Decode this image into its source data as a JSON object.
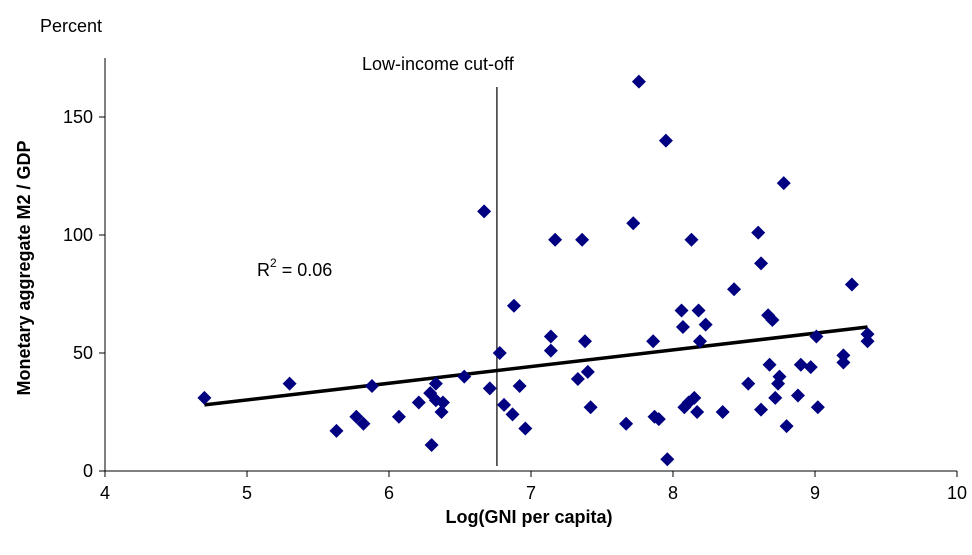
{
  "chart_data": {
    "type": "scatter",
    "xlabel": "Log(GNI per capita)",
    "ylabel": "Monetary aggregate M2 / GDP",
    "y_unit": "Percent",
    "xlim": [
      4,
      10
    ],
    "ylim": [
      0,
      175
    ],
    "x_ticks": [
      "4",
      "5",
      "6",
      "7",
      "8",
      "9",
      "10"
    ],
    "y_ticks": [
      "0",
      "50",
      "100",
      "150"
    ],
    "marker_color": "#000080",
    "grid": false,
    "legend": "none",
    "annotations": {
      "cutoff_label": "Low-income cut-off",
      "cutoff_x": 6.76,
      "r2_prefix": "R",
      "r2_sup": "2",
      "r2_value": " = 0.06"
    },
    "trendline": {
      "x": [
        4.7,
        9.37
      ],
      "y": [
        28,
        61
      ]
    },
    "points": [
      [
        4.7,
        31
      ],
      [
        5.3,
        37
      ],
      [
        5.63,
        17
      ],
      [
        5.77,
        23
      ],
      [
        5.82,
        20
      ],
      [
        5.88,
        36
      ],
      [
        6.07,
        23
      ],
      [
        6.21,
        29
      ],
      [
        6.29,
        33
      ],
      [
        6.3,
        11
      ],
      [
        6.33,
        37
      ],
      [
        6.33,
        30
      ],
      [
        6.37,
        25
      ],
      [
        6.38,
        29
      ],
      [
        6.53,
        40
      ],
      [
        6.67,
        110
      ],
      [
        6.71,
        35
      ],
      [
        6.78,
        50
      ],
      [
        6.81,
        28
      ],
      [
        6.87,
        24
      ],
      [
        6.88,
        70
      ],
      [
        6.92,
        36
      ],
      [
        6.96,
        18
      ],
      [
        7.14,
        57
      ],
      [
        7.14,
        51
      ],
      [
        7.17,
        98
      ],
      [
        7.33,
        39
      ],
      [
        7.36,
        98
      ],
      [
        7.38,
        55
      ],
      [
        7.4,
        42
      ],
      [
        7.42,
        27
      ],
      [
        7.67,
        20
      ],
      [
        7.72,
        105
      ],
      [
        7.76,
        165
      ],
      [
        7.86,
        55
      ],
      [
        7.87,
        23
      ],
      [
        7.9,
        22
      ],
      [
        7.95,
        140
      ],
      [
        7.96,
        5
      ],
      [
        8.06,
        68
      ],
      [
        8.07,
        61
      ],
      [
        8.08,
        27
      ],
      [
        8.11,
        29
      ],
      [
        8.13,
        98
      ],
      [
        8.15,
        31
      ],
      [
        8.17,
        25
      ],
      [
        8.18,
        68
      ],
      [
        8.19,
        55
      ],
      [
        8.23,
        62
      ],
      [
        8.35,
        25
      ],
      [
        8.43,
        77
      ],
      [
        8.53,
        37
      ],
      [
        8.6,
        101
      ],
      [
        8.62,
        88
      ],
      [
        8.62,
        26
      ],
      [
        8.67,
        66
      ],
      [
        8.68,
        45
      ],
      [
        8.7,
        64
      ],
      [
        8.72,
        31
      ],
      [
        8.74,
        37
      ],
      [
        8.75,
        40
      ],
      [
        8.78,
        122
      ],
      [
        8.8,
        19
      ],
      [
        8.88,
        32
      ],
      [
        8.9,
        45
      ],
      [
        8.97,
        44
      ],
      [
        9.01,
        57
      ],
      [
        9.02,
        27
      ],
      [
        9.2,
        49
      ],
      [
        9.2,
        46
      ],
      [
        9.26,
        79
      ],
      [
        9.37,
        58
      ],
      [
        9.37,
        55
      ]
    ]
  }
}
